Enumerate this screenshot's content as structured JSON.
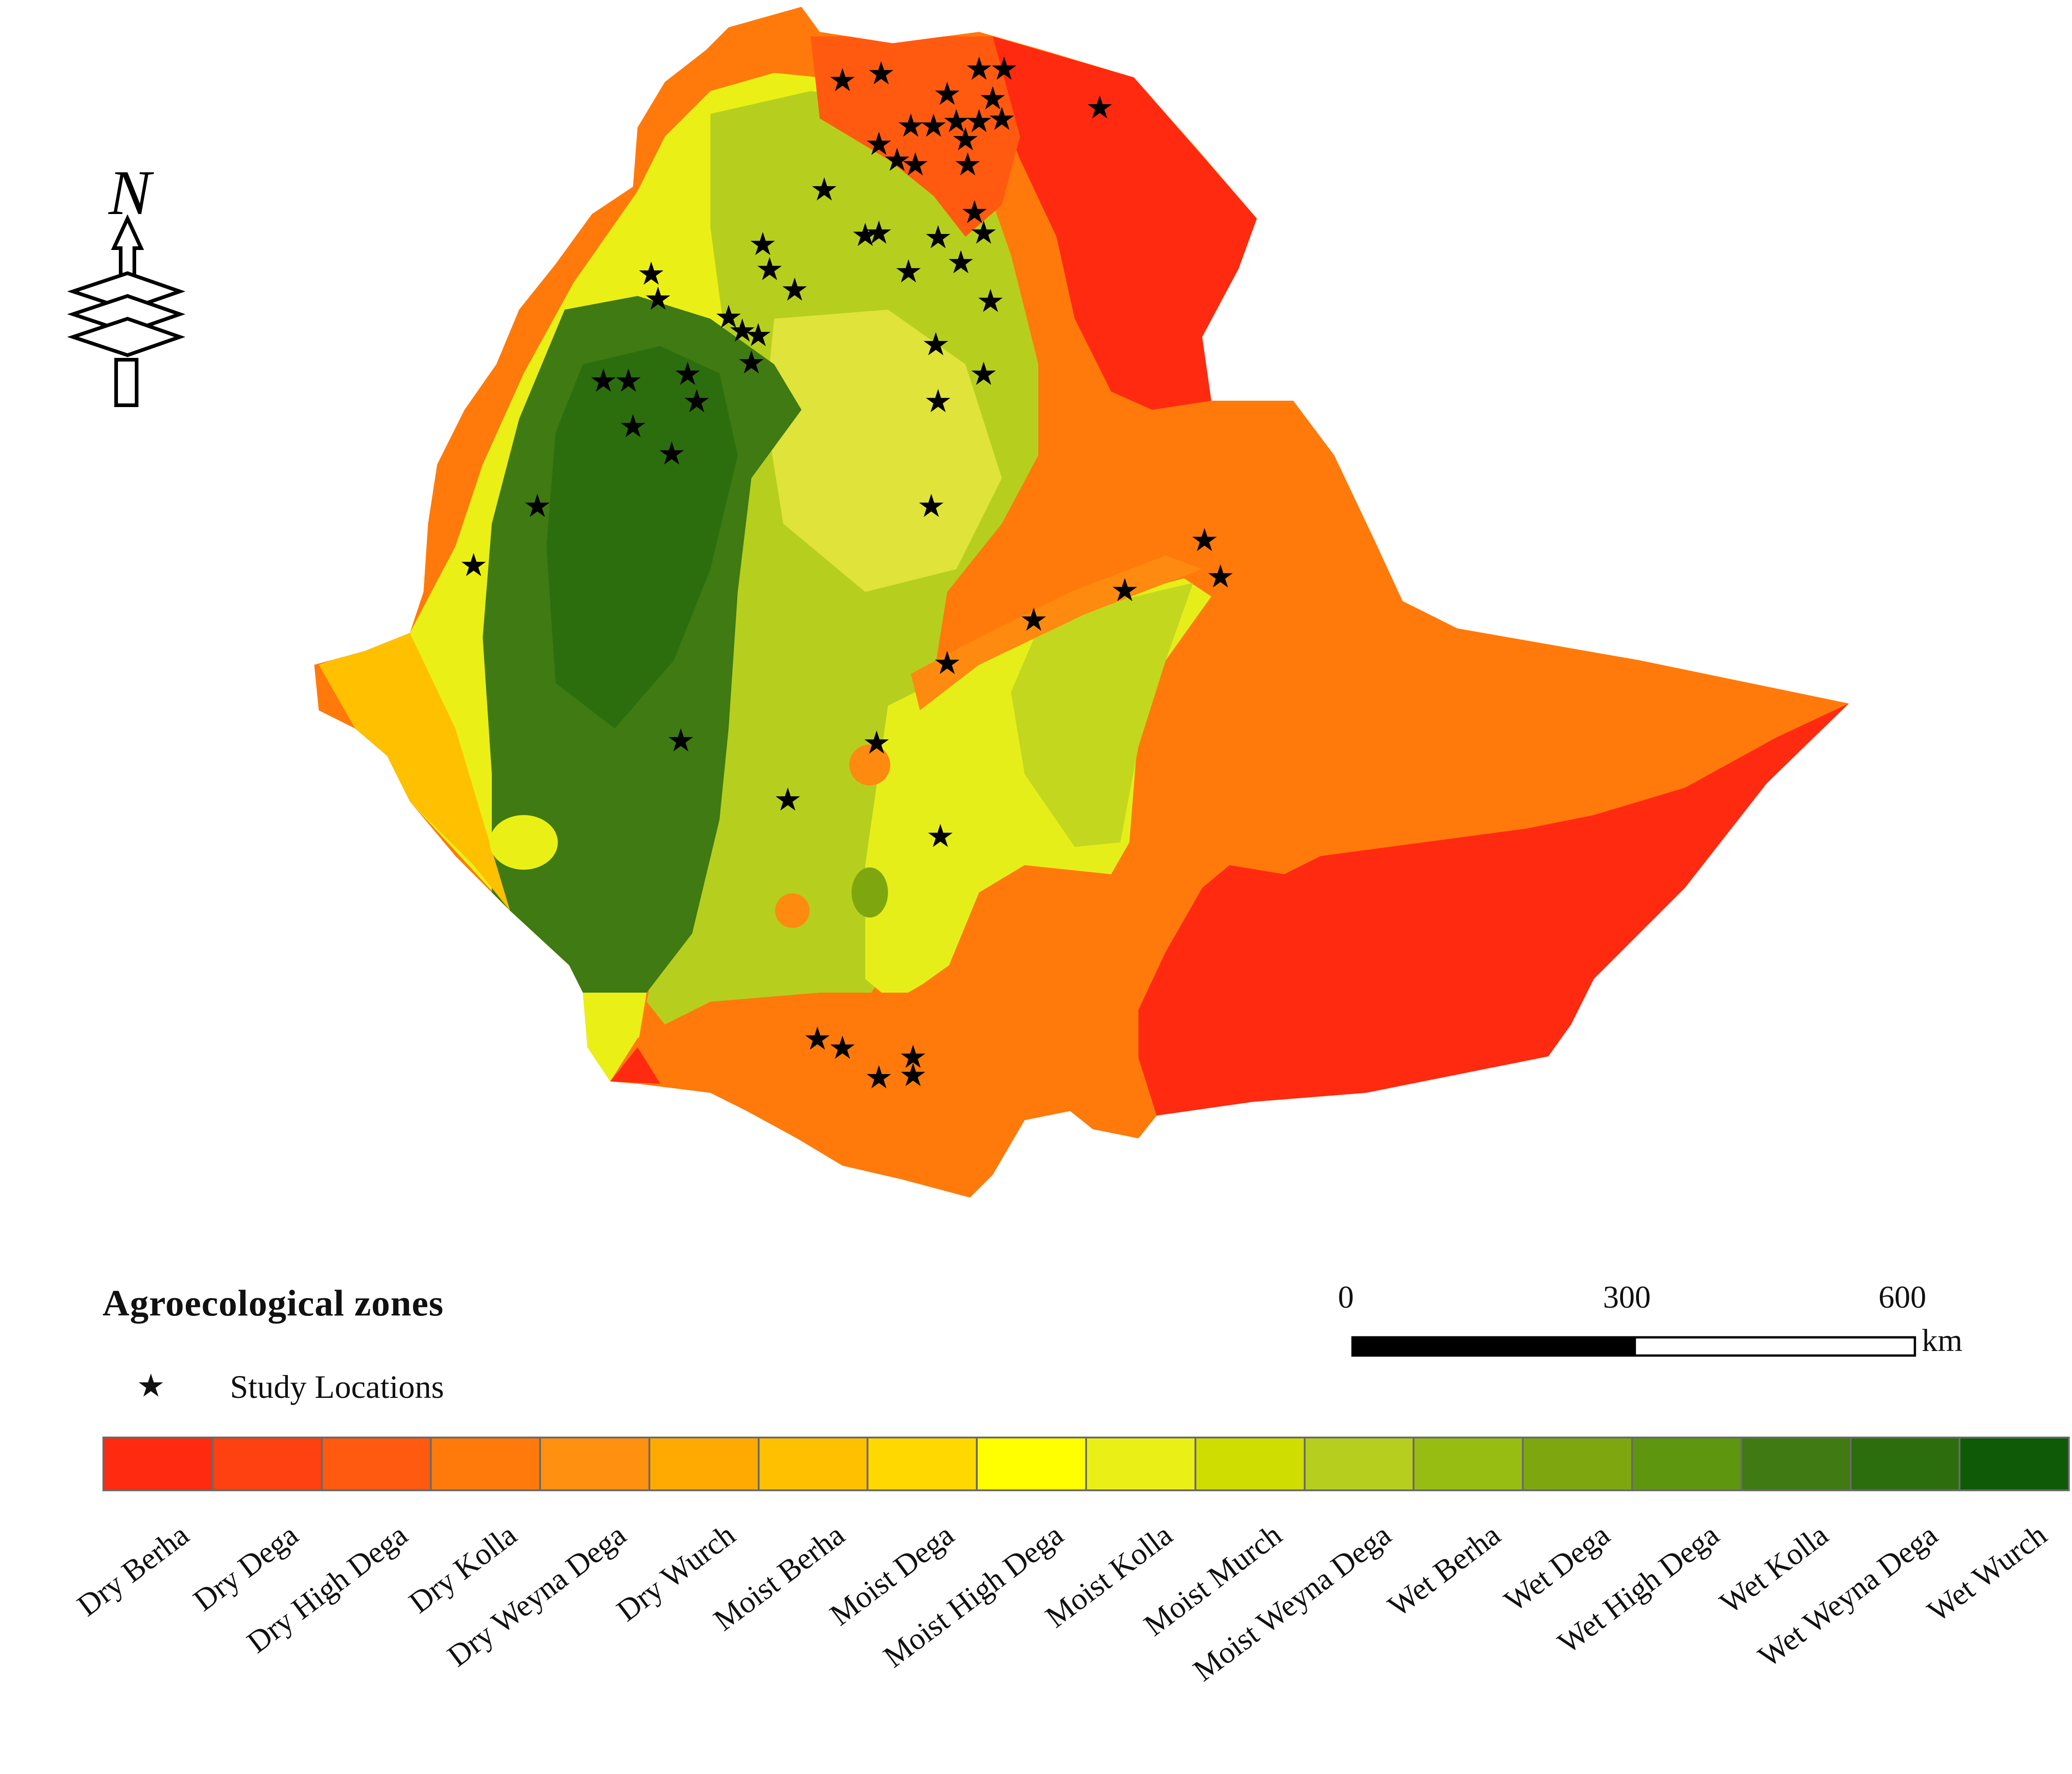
{
  "map": {
    "north_arrow": {
      "label": "N"
    },
    "legend": {
      "title": "Agroecological zones",
      "study_locations_label": "Study Locations",
      "zones": [
        {
          "name": "Dry Berha",
          "color": "#ff2a10"
        },
        {
          "name": "Dry Dega",
          "color": "#ff4010"
        },
        {
          "name": "Dry High Dega",
          "color": "#ff5a10"
        },
        {
          "name": "Dry Kolla",
          "color": "#ff7a0a"
        },
        {
          "name": "Dry Weyna Dega",
          "color": "#ff9010"
        },
        {
          "name": "Dry Wurch",
          "color": "#ffaa00"
        },
        {
          "name": "Moist Berha",
          "color": "#ffc000"
        },
        {
          "name": "Moist Dega",
          "color": "#ffd800"
        },
        {
          "name": "Moist High Dega",
          "color": "#ffff00"
        },
        {
          "name": "Moist Kolla",
          "color": "#eaf015"
        },
        {
          "name": "Moist Murch",
          "color": "#cfdd00"
        },
        {
          "name": "Moist Weyna Dega",
          "color": "#b6cf1e"
        },
        {
          "name": "Wet Berha",
          "color": "#98bd12"
        },
        {
          "name": "Wet Dega",
          "color": "#7ea70f"
        },
        {
          "name": "Wet High Dega",
          "color": "#5e9610"
        },
        {
          "name": "Wet Kolla",
          "color": "#3f7a12"
        },
        {
          "name": "Wet Weyna Dega",
          "color": "#2c6e0e"
        },
        {
          "name": "Wet Wurch",
          "color": "#0f5a06"
        }
      ]
    },
    "scale_bar": {
      "ticks": [
        "0",
        "300",
        "600"
      ],
      "unit": "km"
    }
  }
}
